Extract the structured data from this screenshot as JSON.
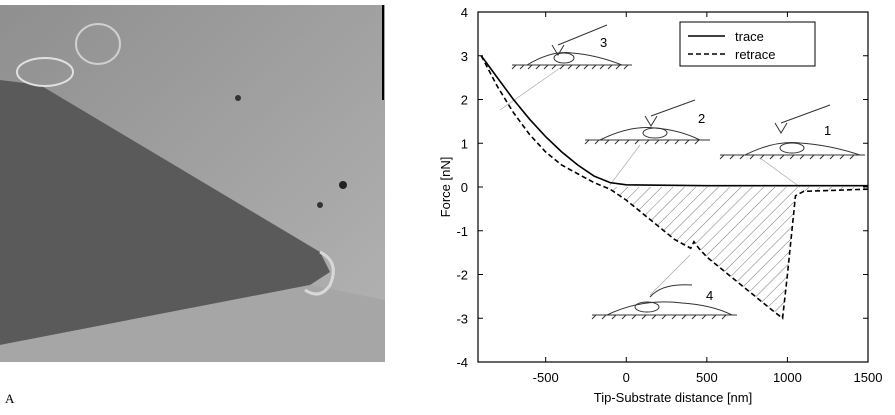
{
  "panel_label": "A",
  "chart_data": {
    "type": "line",
    "xlabel": "Tip-Substrate distance [nm]",
    "ylabel": "Force [nN]",
    "xlim": [
      -920,
      1500
    ],
    "ylim": [
      -4,
      4
    ],
    "xticks": [
      -500,
      0,
      500,
      1000,
      1500
    ],
    "yticks": [
      -4,
      -3,
      -2,
      -1,
      0,
      1,
      2,
      3,
      4
    ],
    "legend": "upper right",
    "annotations": [
      "1",
      "2",
      "3",
      "4"
    ],
    "series": [
      {
        "name": "trace",
        "color": "#000000",
        "dash": "solid",
        "x": [
          -900,
          -800,
          -700,
          -600,
          -500,
          -400,
          -300,
          -200,
          -100,
          0,
          500,
          1000,
          1500
        ],
        "values": [
          3,
          2.5,
          2.0,
          1.55,
          1.15,
          0.8,
          0.5,
          0.25,
          0.1,
          0.05,
          0.03,
          0.03,
          0.03
        ]
      },
      {
        "name": "retrace",
        "color": "#000000",
        "dash": "dashed",
        "x": [
          -900,
          -800,
          -700,
          -600,
          -500,
          -400,
          -300,
          -200,
          -100,
          0,
          100,
          200,
          300,
          350,
          400,
          420,
          450,
          500,
          600,
          700,
          800,
          900,
          970,
          1000,
          1050,
          1100,
          1500
        ],
        "values": [
          3,
          2.3,
          1.7,
          1.2,
          0.8,
          0.5,
          0.3,
          0.1,
          -0.05,
          -0.3,
          -0.6,
          -0.9,
          -1.2,
          -1.3,
          -1.4,
          -1.25,
          -1.4,
          -1.6,
          -1.9,
          -2.2,
          -2.5,
          -2.8,
          -3.0,
          -2.0,
          -0.2,
          -0.1,
          -0.05
        ]
      }
    ]
  }
}
